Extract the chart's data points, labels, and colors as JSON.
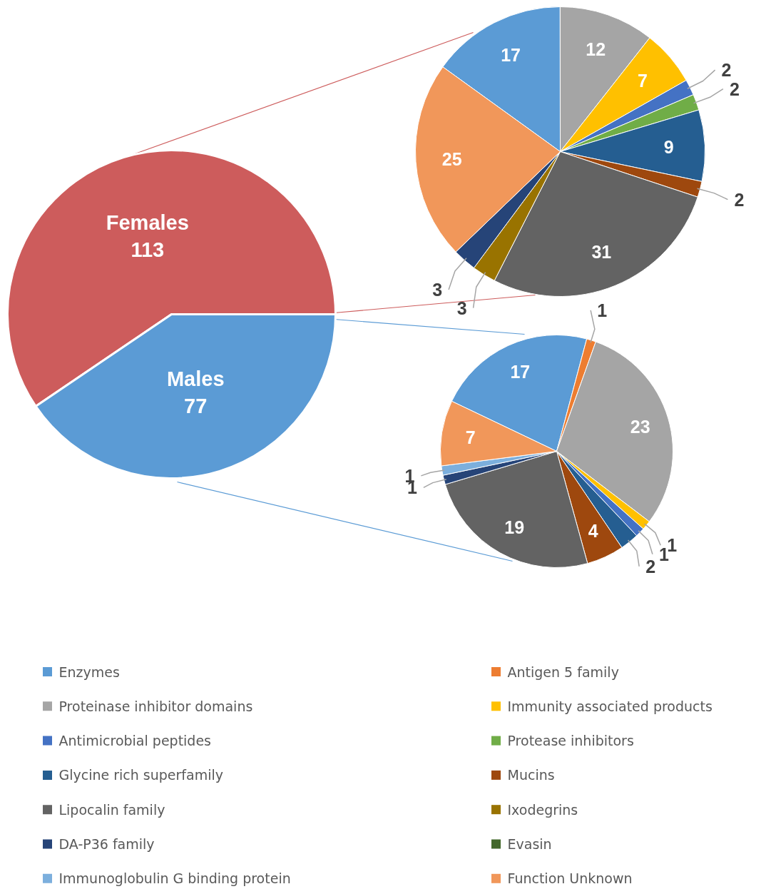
{
  "chart_data": [
    {
      "type": "pie",
      "categories": [
        "Females",
        "Males"
      ],
      "values": [
        113,
        77
      ],
      "colors": [
        "#cd5c5c",
        "#5b9bd5"
      ],
      "data_labels": true
    },
    {
      "type": "pie",
      "categories": [
        "Enzymes",
        "Antigen 5 family",
        "Proteinase inhibitor domains",
        "Immunity associated products",
        "Antimicrobial peptides",
        "Protease inhibitors",
        "Glycine rich superfamily",
        "Mucins",
        "Lipocalin family",
        "Ixodegrins",
        "DA-P36 family",
        "Evasin",
        "Immunoglobulin G binding protein",
        "Function Unknown"
      ],
      "colors": [
        "#5b9bd5",
        "#ed7d31",
        "#a5a5a5",
        "#ffc000",
        "#4472c4",
        "#70ad47",
        "#255e91",
        "#9e480e",
        "#636363",
        "#997300",
        "#264478",
        "#43682b",
        "#7cafdd",
        "#f1975a"
      ],
      "series": [
        {
          "values": [
            17,
            0,
            12,
            7,
            2,
            2,
            9,
            2,
            31,
            3,
            3,
            0,
            0,
            25
          ]
        },
        {
          "values": [
            17,
            1,
            23,
            1,
            1,
            0,
            2,
            4,
            19,
            0,
            1,
            0,
            1,
            7
          ]
        }
      ],
      "data_labels": true,
      "legend": "bottom"
    }
  ]
}
